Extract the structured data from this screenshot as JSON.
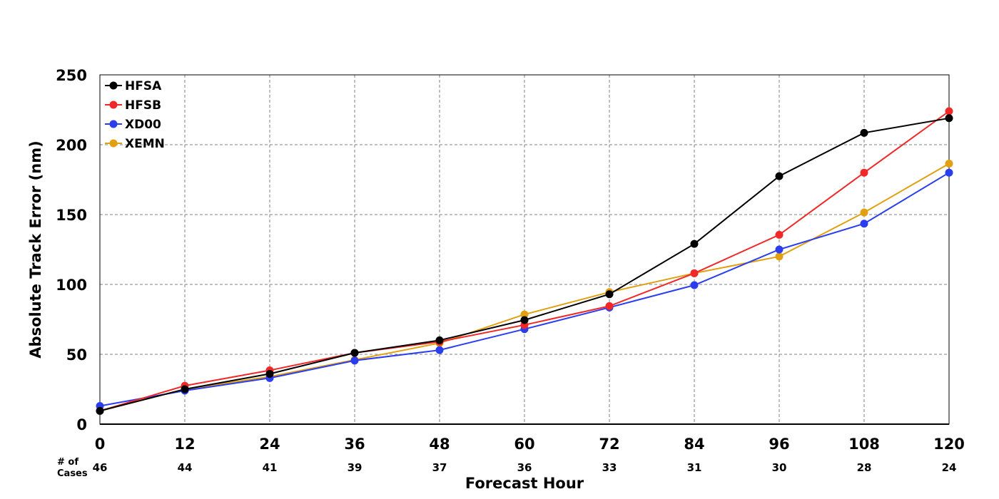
{
  "chart_data": {
    "type": "line",
    "title": "",
    "xlabel": "Forecast Hour",
    "ylabel": "Absolute Track Error (nm)",
    "x": [
      0,
      12,
      24,
      36,
      48,
      60,
      72,
      84,
      96,
      108,
      120
    ],
    "xlim": [
      0,
      120
    ],
    "ylim": [
      0,
      250
    ],
    "yticks": [
      0,
      50,
      100,
      150,
      200,
      250
    ],
    "grid": true,
    "legend_position": "top-left",
    "series": [
      {
        "name": "HFSA",
        "color": "#000000",
        "values": [
          9.5,
          25,
          36,
          51,
          60,
          74.5,
          93,
          129,
          177.5,
          208.5,
          219
        ]
      },
      {
        "name": "HFSB",
        "color": "#f02828",
        "values": [
          9.5,
          27.5,
          38.5,
          51,
          59,
          71,
          84.5,
          108,
          135.5,
          180,
          224
        ]
      },
      {
        "name": "XD00",
        "color": "#2a3ef0",
        "values": [
          13,
          24,
          33,
          45.5,
          53,
          68,
          83.5,
          99.5,
          125,
          143.5,
          180
        ]
      },
      {
        "name": "XEMN",
        "color": "#e0a010",
        "values": [
          9.5,
          25,
          34,
          46,
          58,
          78.5,
          94.5,
          108,
          120,
          151.5,
          186.5
        ]
      }
    ],
    "cases": {
      "label_line1": "# of",
      "label_line2": "Cases",
      "values": [
        "46",
        "44",
        "41",
        "39",
        "37",
        "36",
        "33",
        "31",
        "30",
        "28",
        "24"
      ]
    }
  }
}
